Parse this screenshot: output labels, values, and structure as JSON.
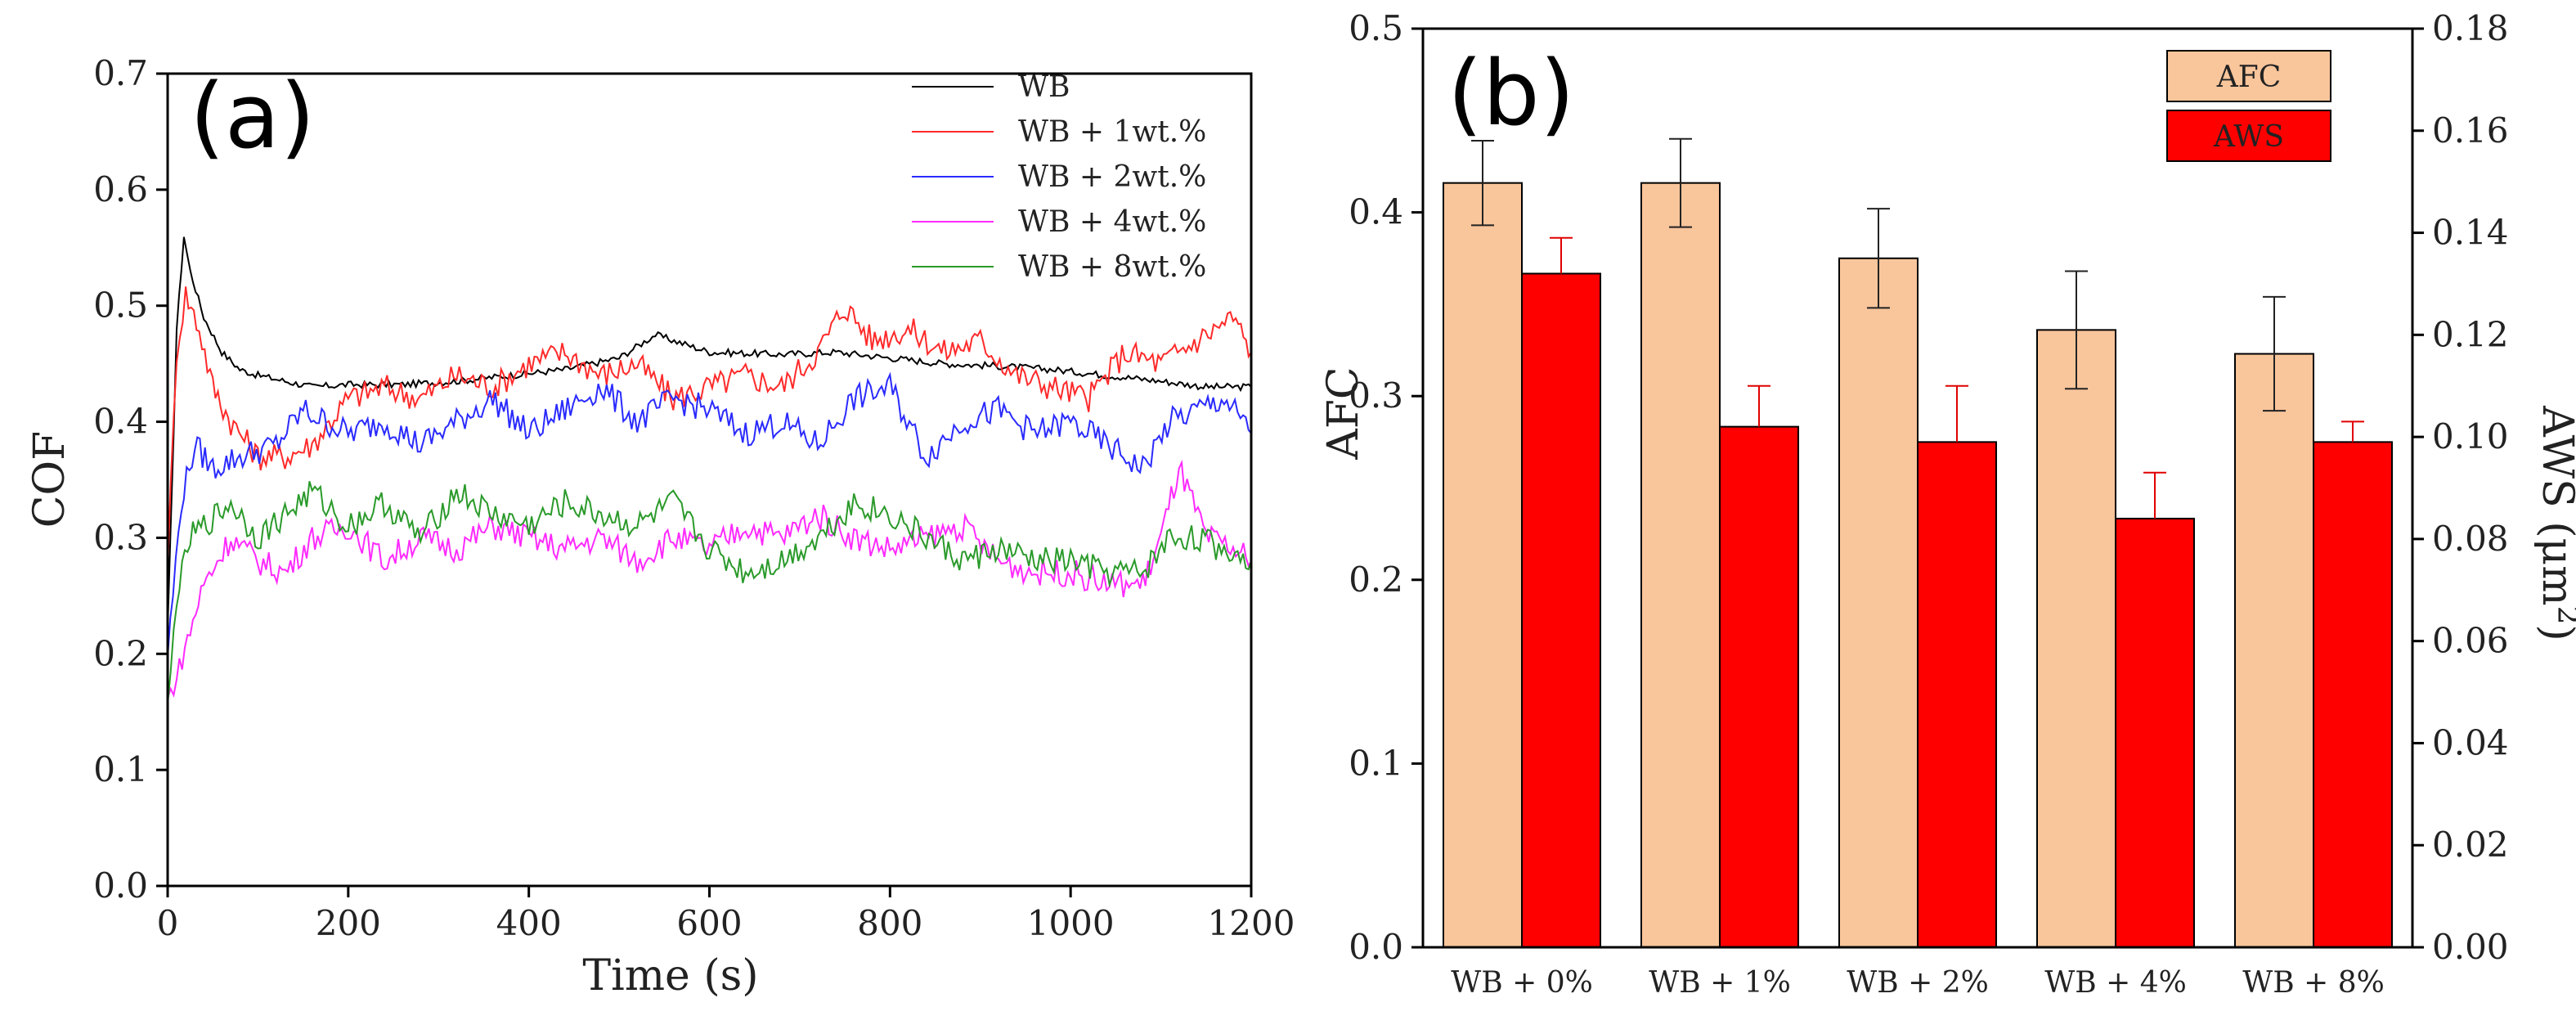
{
  "chart_data": [
    {
      "panel": "(a)",
      "type": "line",
      "xlabel": "Time (s)",
      "ylabel": "COF",
      "xlim": [
        0,
        1200
      ],
      "ylim": [
        0.0,
        0.7
      ],
      "xticks": [
        "0",
        "200",
        "400",
        "600",
        "800",
        "1000",
        "1200"
      ],
      "yticks": [
        "0.0",
        "0.1",
        "0.2",
        "0.3",
        "0.4",
        "0.5",
        "0.6",
        "0.7"
      ],
      "legend_position": "top-right",
      "series": [
        {
          "name": "WB",
          "color": "#000000",
          "x": [
            0,
            10,
            18,
            25,
            40,
            60,
            80,
            100,
            130,
            160,
            200,
            260,
            320,
            380,
            440,
            500,
            540,
            600,
            680,
            740,
            800,
            860,
            920,
            980,
            1040,
            1100,
            1150,
            1200
          ],
          "y": [
            0.22,
            0.48,
            0.56,
            0.53,
            0.49,
            0.46,
            0.445,
            0.44,
            0.435,
            0.43,
            0.432,
            0.432,
            0.435,
            0.44,
            0.445,
            0.455,
            0.475,
            0.46,
            0.458,
            0.46,
            0.455,
            0.45,
            0.448,
            0.445,
            0.44,
            0.435,
            0.43,
            0.43
          ]
        },
        {
          "name": "WB + 1wt.%",
          "color": "#ff2a2a",
          "x": [
            0,
            10,
            20,
            35,
            50,
            70,
            100,
            130,
            160,
            200,
            240,
            280,
            320,
            360,
            400,
            440,
            480,
            520,
            560,
            600,
            640,
            680,
            720,
            750,
            780,
            820,
            860,
            900,
            940,
            980,
            1020,
            1060,
            1100,
            1140,
            1180,
            1200
          ],
          "y": [
            0.28,
            0.46,
            0.51,
            0.48,
            0.43,
            0.4,
            0.37,
            0.37,
            0.38,
            0.42,
            0.43,
            0.42,
            0.44,
            0.43,
            0.45,
            0.46,
            0.44,
            0.45,
            0.42,
            0.43,
            0.44,
            0.43,
            0.46,
            0.5,
            0.47,
            0.48,
            0.46,
            0.47,
            0.44,
            0.43,
            0.42,
            0.46,
            0.45,
            0.47,
            0.49,
            0.46
          ]
        },
        {
          "name": "WB + 2wt.%",
          "color": "#2a2aff",
          "x": [
            0,
            15,
            30,
            50,
            80,
            120,
            150,
            200,
            240,
            280,
            320,
            360,
            400,
            440,
            480,
            520,
            560,
            600,
            640,
            680,
            720,
            760,
            800,
            840,
            880,
            920,
            960,
            1000,
            1040,
            1080,
            1110,
            1140,
            1170,
            1200
          ],
          "y": [
            0.2,
            0.33,
            0.38,
            0.36,
            0.37,
            0.38,
            0.41,
            0.39,
            0.4,
            0.38,
            0.4,
            0.42,
            0.39,
            0.41,
            0.43,
            0.4,
            0.42,
            0.41,
            0.39,
            0.4,
            0.38,
            0.42,
            0.43,
            0.37,
            0.4,
            0.41,
            0.39,
            0.4,
            0.38,
            0.36,
            0.4,
            0.41,
            0.42,
            0.39
          ]
        },
        {
          "name": "WB + 4wt.%",
          "color": "#ff2aff",
          "x": [
            0,
            10,
            25,
            40,
            70,
            100,
            130,
            160,
            200,
            240,
            280,
            320,
            360,
            400,
            440,
            480,
            520,
            560,
            600,
            640,
            680,
            720,
            760,
            800,
            840,
            880,
            920,
            960,
            1000,
            1040,
            1080,
            1100,
            1120,
            1150,
            1180,
            1200
          ],
          "y": [
            0.16,
            0.18,
            0.22,
            0.26,
            0.3,
            0.28,
            0.27,
            0.3,
            0.31,
            0.28,
            0.3,
            0.29,
            0.31,
            0.3,
            0.29,
            0.3,
            0.28,
            0.3,
            0.29,
            0.31,
            0.3,
            0.32,
            0.3,
            0.29,
            0.3,
            0.31,
            0.28,
            0.27,
            0.27,
            0.26,
            0.26,
            0.3,
            0.36,
            0.3,
            0.29,
            0.28
          ]
        },
        {
          "name": "WB + 8wt.%",
          "color": "#2a9a2a",
          "x": [
            0,
            10,
            25,
            40,
            70,
            100,
            130,
            160,
            200,
            240,
            280,
            320,
            360,
            400,
            440,
            480,
            520,
            560,
            600,
            640,
            680,
            720,
            760,
            800,
            840,
            880,
            920,
            960,
            1000,
            1040,
            1080,
            1110,
            1140,
            1170,
            1200
          ],
          "y": [
            0.15,
            0.25,
            0.3,
            0.31,
            0.33,
            0.3,
            0.32,
            0.34,
            0.31,
            0.33,
            0.3,
            0.34,
            0.32,
            0.31,
            0.33,
            0.32,
            0.31,
            0.33,
            0.29,
            0.27,
            0.28,
            0.3,
            0.33,
            0.32,
            0.3,
            0.28,
            0.29,
            0.28,
            0.28,
            0.27,
            0.27,
            0.3,
            0.3,
            0.29,
            0.28
          ]
        }
      ]
    },
    {
      "panel": "(b)",
      "type": "bar",
      "categories": [
        "WB + 0%",
        "WB + 1%",
        "WB + 2%",
        "WB + 4%",
        "WB + 8%"
      ],
      "ylabel": "AFC",
      "y2label": "AWS (μm²)",
      "y2label_main": "AWS (",
      "y2label_unit": "μm",
      "y2label_exp": "2",
      "y2label_close": ")",
      "ylim": [
        0.0,
        0.5
      ],
      "y2lim": [
        0.0,
        0.18
      ],
      "yticks": [
        "0.0",
        "0.1",
        "0.2",
        "0.3",
        "0.4",
        "0.5"
      ],
      "y2ticks": [
        "0.00",
        "0.02",
        "0.04",
        "0.06",
        "0.08",
        "0.10",
        "0.12",
        "0.14",
        "0.16",
        "0.18"
      ],
      "legend_position": "top-right",
      "series": [
        {
          "name": "AFC",
          "axis": "left",
          "color": "#f9c59b",
          "values": [
            0.416,
            0.416,
            0.375,
            0.336,
            0.323
          ],
          "errors": [
            0.023,
            0.024,
            0.027,
            0.032,
            0.031
          ]
        },
        {
          "name": "AWS",
          "axis": "right",
          "color": "#ff0000",
          "values": [
            0.132,
            0.102,
            0.099,
            0.084,
            0.099
          ],
          "errors": [
            0.007,
            0.008,
            0.011,
            0.009,
            0.004
          ]
        }
      ]
    }
  ]
}
